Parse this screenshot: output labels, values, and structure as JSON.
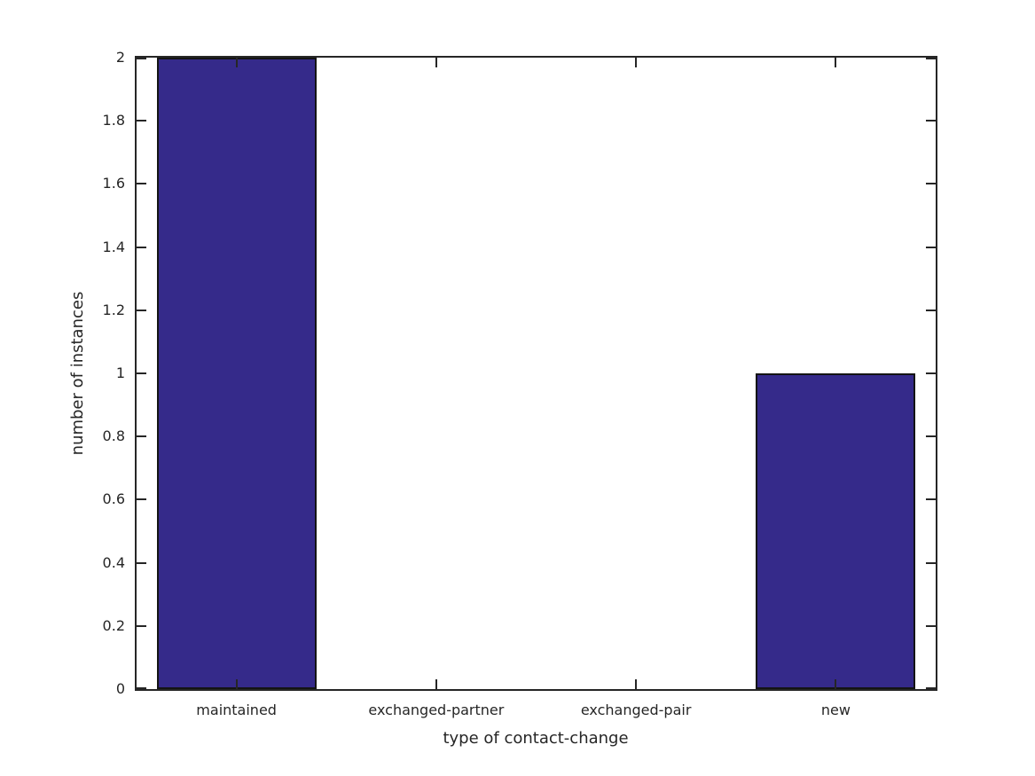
{
  "chart_data": {
    "type": "bar",
    "title": "",
    "xlabel": "type of contact-change",
    "ylabel": "number of instances",
    "categories": [
      "maintained",
      "exchanged-partner",
      "exchanged-pair",
      "new"
    ],
    "values": [
      2,
      0,
      0,
      1
    ],
    "ylim": [
      0,
      2
    ],
    "ytick_step": 0.2,
    "ytick_labels": [
      "0",
      "0.2",
      "0.4",
      "0.6",
      "0.8",
      "1",
      "1.2",
      "1.4",
      "1.6",
      "1.8",
      "2"
    ],
    "grid": false,
    "legend": "none",
    "box": "on",
    "tick_direction": "in",
    "bar_width_fraction": 0.8,
    "bar_fill_color": "#352a8a",
    "bar_edge_color": "#141414",
    "axis_color": "#262626",
    "background_color": "#ffffff"
  }
}
